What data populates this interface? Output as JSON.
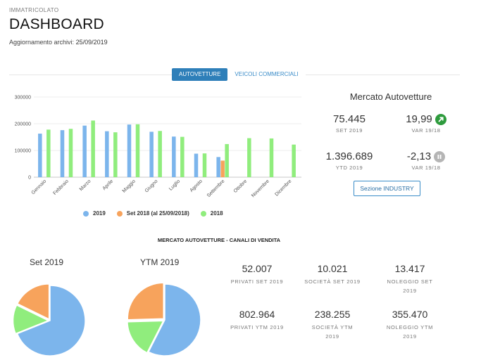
{
  "header": {
    "eyebrow": "IMMATRICOLATO",
    "title": "DASHBOARD",
    "updated_label": "Aggiornamento archivi:",
    "updated_value": "25/09/2019"
  },
  "tabs": [
    {
      "label": "AUTOVETTURE",
      "active": true
    },
    {
      "label": "VEICOLI COMMERCIALI",
      "active": false
    }
  ],
  "chart_data": [
    {
      "type": "bar",
      "title": "",
      "xlabel": "",
      "ylabel": "",
      "ylim": [
        0,
        300000
      ],
      "yticks": [
        "300000",
        "200000",
        "100000",
        "0"
      ],
      "grid": true,
      "legend_position": "bottom",
      "categories": [
        "Gennaio",
        "Febbraio",
        "Marzo",
        "Aprile",
        "Maggio",
        "Giugno",
        "Luglio",
        "Agosto",
        "Settembre",
        "Ottobre",
        "Novembre",
        "Dicembre"
      ],
      "series": [
        {
          "name": "2019",
          "color": "#7cb5ec",
          "values": [
            163000,
            176000,
            193000,
            172000,
            197000,
            170000,
            152000,
            88000,
            75445,
            null,
            null,
            null
          ]
        },
        {
          "name": "Set 2018 (al 25/09/2018)",
          "color": "#f7a35c",
          "values": [
            null,
            null,
            null,
            null,
            null,
            null,
            null,
            null,
            62000,
            null,
            null,
            null
          ]
        },
        {
          "name": "2018",
          "color": "#90ed7d",
          "values": [
            178000,
            181000,
            212000,
            168000,
            198000,
            173000,
            151000,
            89000,
            124000,
            146000,
            145000,
            122000
          ]
        }
      ]
    },
    {
      "type": "pie",
      "title": "Set 2019",
      "categories": [
        "PRIVATI SET 2019",
        "SOCIETÀ SET 2019",
        "NOLEGGIO SET 2019"
      ],
      "values": [
        52007,
        10021,
        13417
      ],
      "colors": [
        "#7cb5ec",
        "#90ed7d",
        "#f7a35c"
      ]
    },
    {
      "type": "pie",
      "title": "YTM 2019",
      "categories": [
        "PRIVATI YTM 2019",
        "SOCIETÀ YTM 2019",
        "NOLEGGIO YTM 2019"
      ],
      "values": [
        802964,
        238255,
        355470
      ],
      "colors": [
        "#7cb5ec",
        "#90ed7d",
        "#f7a35c"
      ]
    }
  ],
  "market": {
    "title": "Mercato Autovetture",
    "set_value": "75.445",
    "set_label": "SET 2019",
    "var1_value": "19,99",
    "var1_label": "VAR 19/18",
    "var1_icon": "arrow-up-right-icon",
    "var1_color": "#2e9b3d",
    "ytd_value": "1.396.689",
    "ytd_label": "YTD 2019",
    "var2_value": "-2,13",
    "var2_label": "VAR 19/18",
    "var2_icon": "pause-icon",
    "var2_color": "#b5b5b5",
    "button_label": "Sezione INDUSTRY"
  },
  "channels": {
    "section_title": "MERCATO AUTOVETTURE - CANALI DI VENDITA",
    "pie1_title": "Set 2019",
    "pie2_title": "YTM 2019",
    "stats": [
      {
        "value": "52.007",
        "label": "PRIVATI SET 2019"
      },
      {
        "value": "10.021",
        "label": "SOCIETÀ SET 2019"
      },
      {
        "value": "13.417",
        "label": "NOLEGGIO SET 2019"
      },
      {
        "value": "802.964",
        "label": "PRIVATI YTM 2019"
      },
      {
        "value": "238.255",
        "label": "SOCIETÀ YTM 2019"
      },
      {
        "value": "355.470",
        "label": "NOLEGGIO YTM 2019"
      }
    ]
  }
}
